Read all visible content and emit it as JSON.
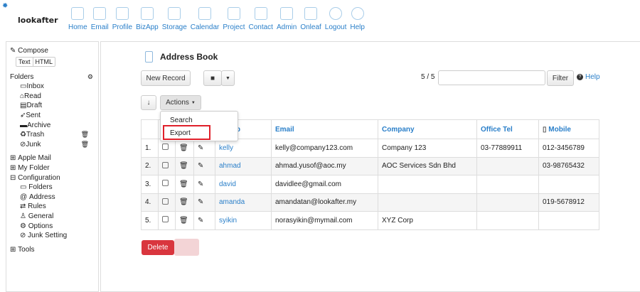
{
  "app": {
    "logo": "lookafter"
  },
  "nav": [
    "Home",
    "Email",
    "Profile",
    "BizApp",
    "Storage",
    "Calendar",
    "Project",
    "Contact",
    "Admin",
    "Onleaf",
    "Logout",
    "Help"
  ],
  "sidebar": {
    "compose": "Compose",
    "text": "Text",
    "html": "HTML",
    "folders": "Folders",
    "folder_items": [
      "Inbox",
      "Read",
      "Draft",
      "Sent",
      "Archive",
      "Trash",
      "Junk"
    ],
    "groups": [
      "Apple Mail",
      "My Folder",
      "Configuration"
    ],
    "config_items": [
      "Folders",
      "Address",
      "Rules",
      "General",
      "Options",
      "Junk Setting"
    ],
    "tools": "Tools"
  },
  "page": {
    "title": "Address Book",
    "new_record": "New Record",
    "pager": "5 / 5",
    "filter_value": "",
    "filter": "Filter",
    "help": "Help",
    "sort": "↓",
    "actions": "Actions",
    "delete": "Delete"
  },
  "actions_menu": [
    "Search",
    "Export"
  ],
  "table": {
    "headers": [
      "Group",
      "Email",
      "Company",
      "Office Tel",
      "Mobile"
    ],
    "rows": [
      {
        "n": "1.",
        "group": "kelly",
        "email": "kelly@company123.com",
        "company": "Company 123",
        "tel": "03-77889911",
        "mobile": "012-3456789"
      },
      {
        "n": "2.",
        "group": "ahmad",
        "email": "ahmad.yusof@aoc.my",
        "company": "AOC Services Sdn Bhd",
        "tel": "",
        "mobile": "03-98765432"
      },
      {
        "n": "3.",
        "group": "david",
        "email": "davidlee@gmail.com",
        "company": "",
        "tel": "",
        "mobile": ""
      },
      {
        "n": "4.",
        "group": "amanda",
        "email": "amandatan@lookafter.my",
        "company": "",
        "tel": "",
        "mobile": "019-5678912"
      },
      {
        "n": "5.",
        "group": "syikin",
        "email": "norasyikin@mymail.com",
        "company": "XYZ Corp",
        "tel": "",
        "mobile": ""
      }
    ]
  },
  "colors": {
    "link": "#2a7fc9",
    "delete": "#d9363e",
    "highlight": "#e0202a"
  }
}
